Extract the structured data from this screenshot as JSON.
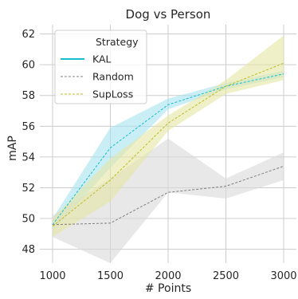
{
  "chart_data": {
    "type": "line",
    "title": "Dog vs Person",
    "xlabel": "# Points",
    "ylabel": "mAP",
    "x": [
      1000,
      1500,
      2000,
      2500,
      3000
    ],
    "xticks": [
      "1000",
      "1500",
      "2000",
      "2500",
      "3000"
    ],
    "yticks": [
      "48",
      "50",
      "52",
      "54",
      "56",
      "58",
      "60",
      "62"
    ],
    "xlim": [
      1000,
      3000
    ],
    "ylim": [
      47.1,
      62.6
    ],
    "grid": true,
    "legend": {
      "title": "Strategy",
      "placement": "upper-left"
    },
    "series": [
      {
        "name": "KAL",
        "color": "#17becf",
        "band_color": "#a6e3ef",
        "values": [
          49.6,
          54.6,
          57.4,
          58.6,
          59.4
        ],
        "lower": [
          49.2,
          53.3,
          57.1,
          58.4,
          59.2
        ],
        "upper": [
          50.0,
          55.9,
          57.8,
          58.8,
          59.6
        ]
      },
      {
        "name": "Random",
        "color": "#7f7f7f",
        "band_color": "#d9d9d9",
        "values": [
          49.6,
          49.7,
          51.7,
          52.1,
          53.4
        ],
        "lower": [
          48.8,
          47.1,
          51.7,
          51.3,
          52.5
        ],
        "upper": [
          50.2,
          52.6,
          55.2,
          52.6,
          54.3
        ]
      },
      {
        "name": "SupLoss",
        "color": "#bcbd22",
        "band_color": "#e6e6a3",
        "values": [
          49.5,
          52.5,
          56.2,
          58.6,
          60.1
        ],
        "lower": [
          48.8,
          51.1,
          55.7,
          58.1,
          59.0
        ],
        "upper": [
          50.0,
          53.9,
          56.7,
          59.0,
          61.9
        ]
      }
    ]
  }
}
